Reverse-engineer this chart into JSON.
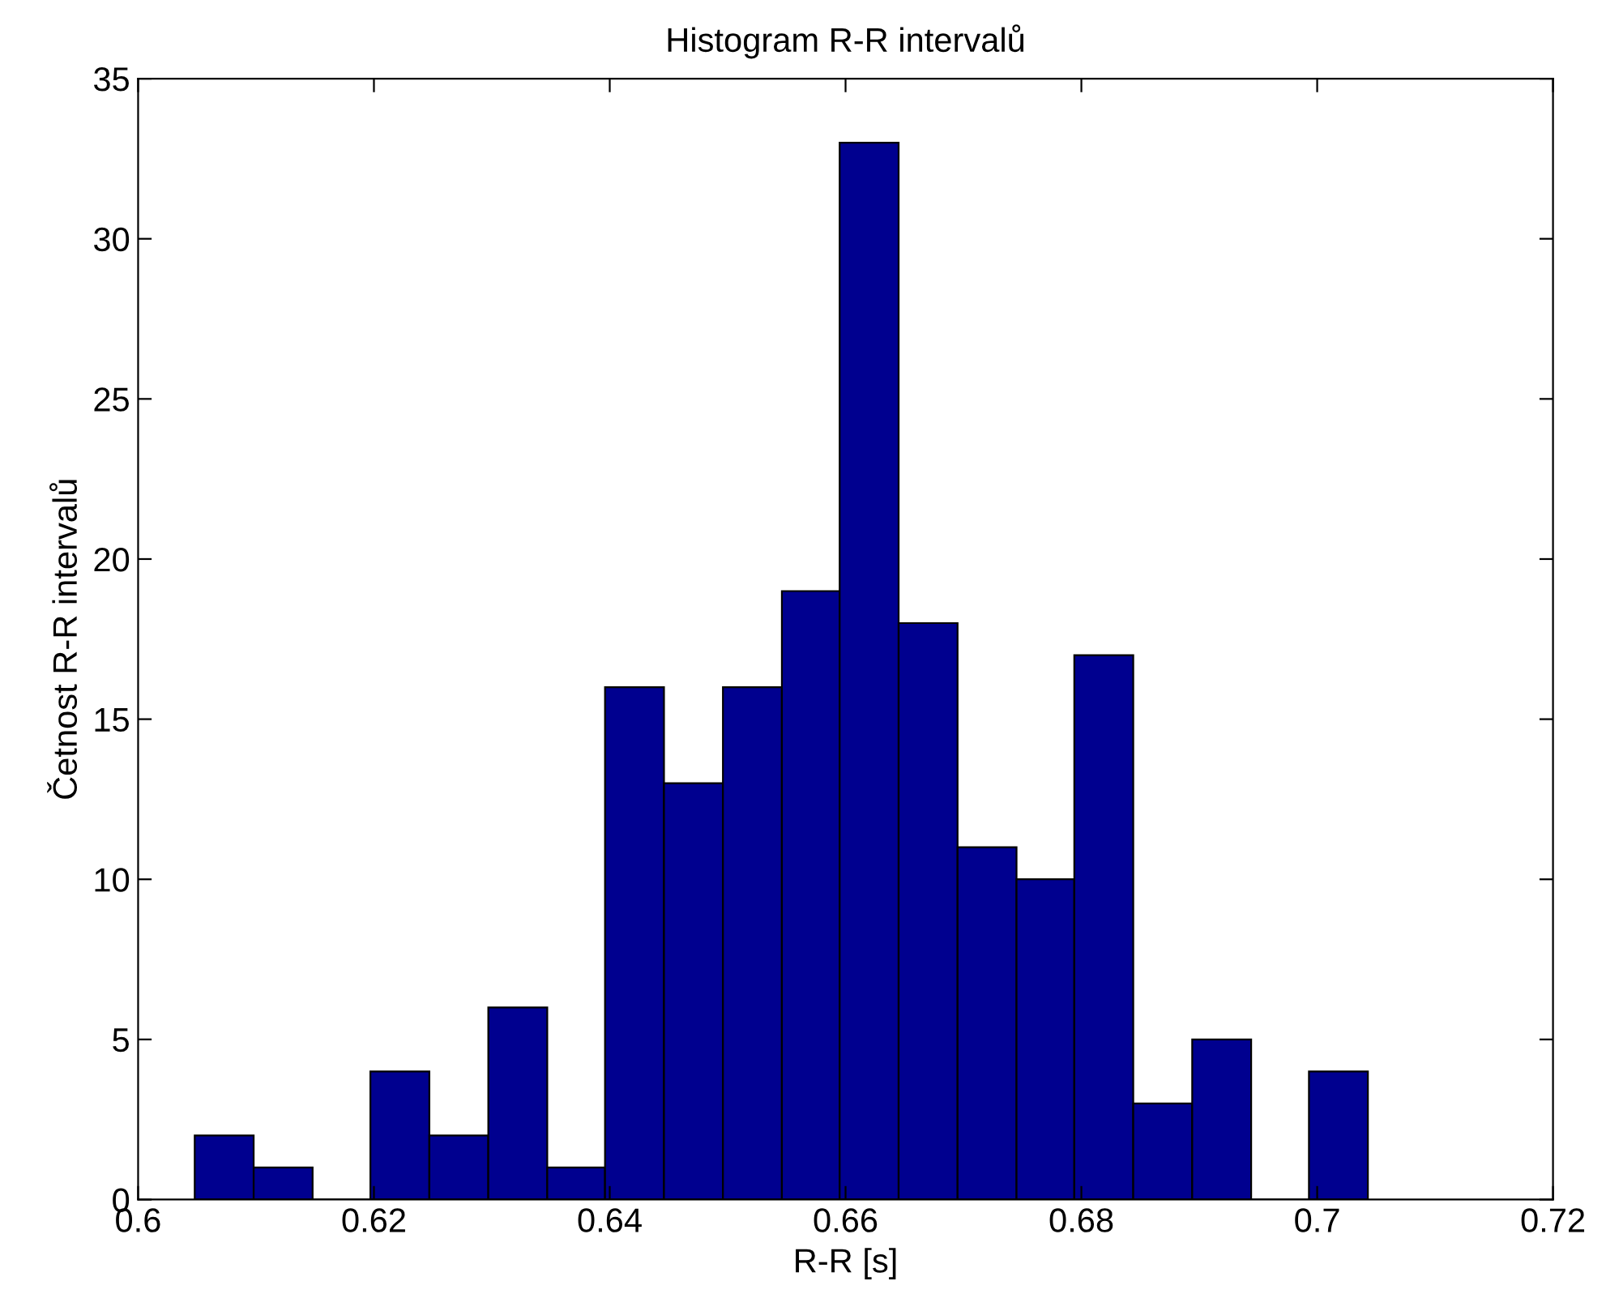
{
  "chart_data": {
    "type": "histogram",
    "title": "Histogram R-R intervalů",
    "xlabel": "R-R [s]",
    "ylabel": "Četnost R-R intervalů",
    "bins": [
      0.6048,
      0.6098,
      0.6148,
      0.6197,
      0.6247,
      0.6297,
      0.6347,
      0.6396,
      0.6446,
      0.6496,
      0.6546,
      0.6595,
      0.6645,
      0.6695,
      0.6745,
      0.6794,
      0.6844,
      0.6894,
      0.6944,
      0.6993,
      0.7043
    ],
    "values": [
      2,
      1,
      0,
      4,
      2,
      6,
      1,
      16,
      13,
      16,
      19,
      33,
      18,
      11,
      10,
      17,
      3,
      5,
      0,
      4
    ],
    "color": "#00008f",
    "xlim": [
      0.6,
      0.72
    ],
    "xticks": [
      {
        "value": 0.6,
        "label": "0.6"
      },
      0.62,
      0.64,
      0.66,
      0.68,
      {
        "value": 0.7,
        "label": "0.7"
      },
      0.72
    ],
    "ylim": [
      0,
      35
    ],
    "yticks": [
      0,
      5,
      10,
      15,
      20,
      25,
      30,
      35
    ],
    "grid": false
  }
}
